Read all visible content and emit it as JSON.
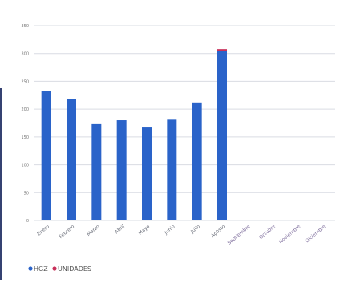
{
  "chart_data": {
    "type": "bar",
    "title": "",
    "xlabel": "",
    "ylabel": "",
    "ylim": [
      0,
      350
    ],
    "yticks": [
      0,
      50,
      100,
      150,
      200,
      250,
      300,
      350
    ],
    "grid": true,
    "legend_position": "bottom-left",
    "categories": [
      "Enero",
      "Febrero",
      "Marzo",
      "Abril",
      "Mayo",
      "Junio",
      "Julio",
      "Agosto",
      "Septiembre",
      "Octubre",
      "Noviembre",
      "Diciembre"
    ],
    "series": [
      {
        "name": "HGZ",
        "color": "#2a63c9",
        "values": [
          233,
          218,
          173,
          180,
          167,
          181,
          212,
          305,
          null,
          null,
          null,
          null
        ]
      },
      {
        "name": "UNIDADES",
        "color": "#c8305a",
        "values": [
          0,
          0,
          0,
          0,
          0,
          0,
          0,
          3,
          null,
          null,
          null,
          null
        ]
      }
    ],
    "future_label_color": "#7b6a9a"
  }
}
